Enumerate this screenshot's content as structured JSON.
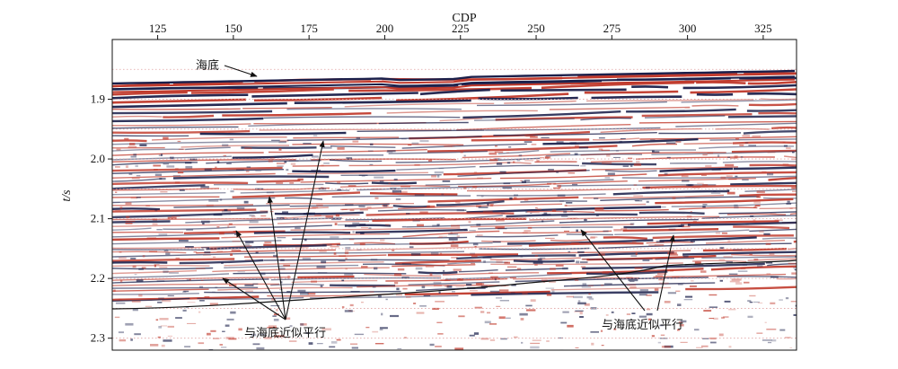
{
  "figure": {
    "x_axis_title": "CDP",
    "y_axis_title": "t/s",
    "x_ticks": [
      "125",
      "150",
      "175",
      "200",
      "225",
      "250",
      "275",
      "300",
      "325"
    ],
    "y_ticks": [
      "1.9",
      "2.0",
      "2.1",
      "2.2",
      "2.3"
    ],
    "x_range": [
      110,
      336
    ],
    "y_range": [
      1.8,
      2.32
    ],
    "colors": {
      "positive": "#c0392b",
      "negative": "#1a1f4a",
      "background": "#ffffff",
      "horizon": "#111111"
    }
  },
  "annotations": {
    "seafloor": "海底",
    "parallel_left": "与海底近似平行",
    "parallel_right": "与海底近似平行"
  }
}
